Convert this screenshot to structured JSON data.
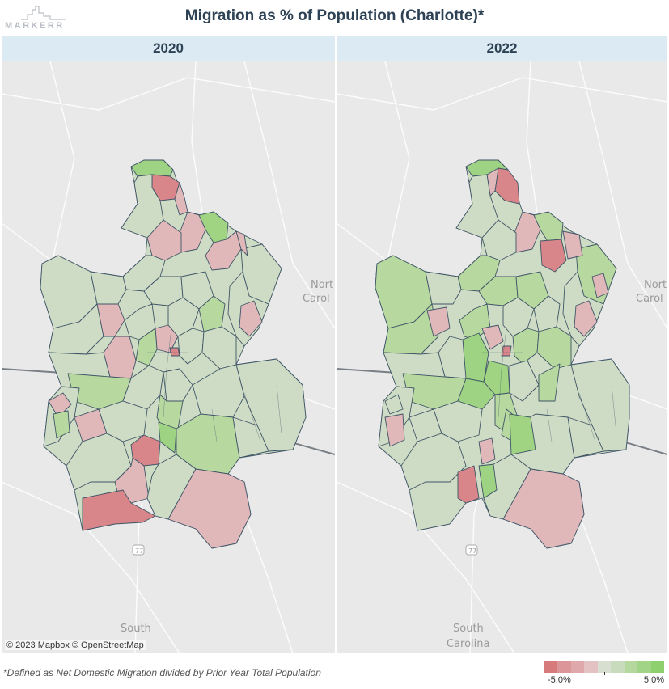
{
  "brand": {
    "name": "MARKERR"
  },
  "title": "Migration as % of Population (Charlotte)*",
  "panels": [
    {
      "label": "2020"
    },
    {
      "label": "2022"
    }
  ],
  "map_labels": {
    "state_nc_line1": "Nort",
    "state_nc_line2": "Carol",
    "state_sc_line1": "South",
    "state_sc_line2": "Carolina",
    "state_sc_line1_left": "South",
    "highway": "77"
  },
  "attribution": "© 2023 Mapbox © OpenStreetMap",
  "footnote": "*Defined as Net Domestic Migration divided by Prior Year Total Population",
  "legend": {
    "min_label": "-5.0%",
    "max_label": "5.0%",
    "min_value": -5.0,
    "max_value": 5.0,
    "colors": [
      "#d77a7c",
      "#dc9699",
      "#dfa8aa",
      "#e4c2c4",
      "#d7dfd0",
      "#c8dbbd",
      "#b4d89e",
      "#a1d486",
      "#8fd06e"
    ]
  },
  "colors": {
    "header_bg": "#dcebf3",
    "title": "#2e4255",
    "map_bg": "#e9e9e9",
    "region_stroke": "#3f5566"
  }
}
